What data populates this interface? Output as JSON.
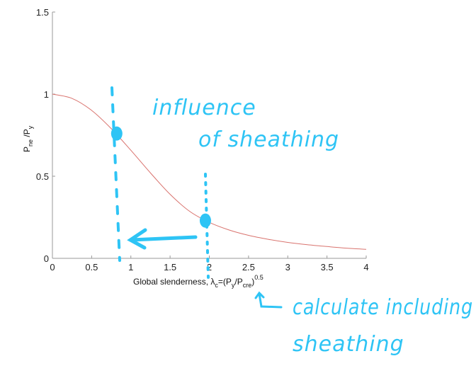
{
  "chart_data": {
    "type": "line",
    "title": "",
    "xlabel": "Global slenderness, λc=(Py/Pcre)^0.5",
    "ylabel": "Pne/Py",
    "xlim": [
      0,
      4
    ],
    "ylim": [
      0,
      1.5
    ],
    "xticks": [
      "0",
      "0.5",
      "1",
      "1.5",
      "2",
      "2.5",
      "3",
      "3.5",
      "4"
    ],
    "yticks": [
      "0",
      "0.5",
      "1",
      "1.5"
    ],
    "grid": false,
    "series": [
      {
        "color": "#d9736e",
        "x": [
          0,
          0.25,
          0.5,
          0.75,
          1,
          1.25,
          1.5,
          1.75,
          2,
          2.25,
          2.5,
          2.75,
          3,
          3.25,
          3.5,
          3.75,
          4
        ],
        "y": [
          1,
          0.974,
          0.901,
          0.79,
          0.658,
          0.52,
          0.39,
          0.286,
          0.219,
          0.173,
          0.14,
          0.116,
          0.097,
          0.083,
          0.072,
          0.062,
          0.055
        ]
      }
    ],
    "markers": [
      {
        "x": 0.82,
        "y": 0.76
      },
      {
        "x": 1.95,
        "y": 0.23
      }
    ],
    "annotations": {
      "color": "#2ec4f5",
      "note1_line1": "influence",
      "note1_line2": "of sheathing",
      "note2_line1": "calculate including",
      "note2_line2": "sheathing"
    }
  }
}
